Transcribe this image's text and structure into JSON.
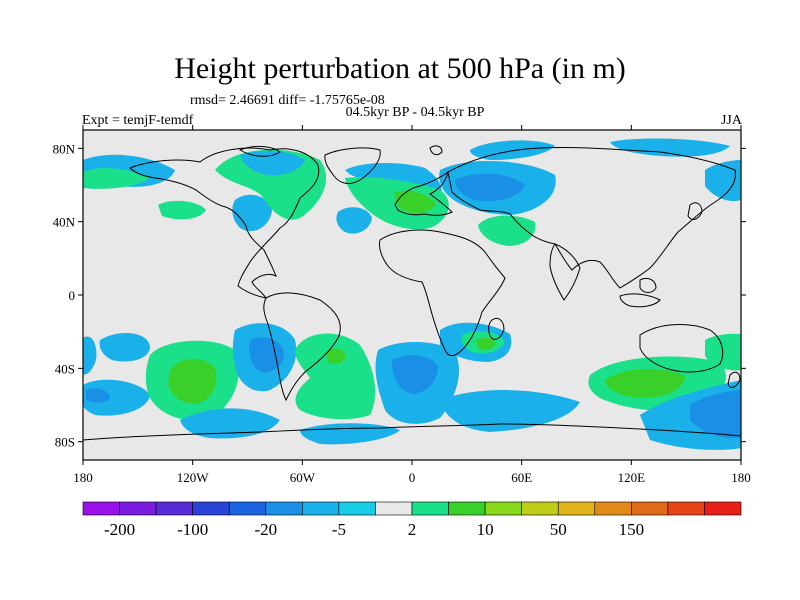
{
  "title": "Height perturbation at 500 hPa (in m)",
  "stats": "rmsd= 2.46691  diff= -1.75765e-08",
  "period": "04.5kyr BP - 04.5kyr BP",
  "experiment": "Expt = temjF-temdf",
  "season": "JJA",
  "lat_ticks": [
    "80N",
    "40N",
    "0",
    "40S",
    "80S"
  ],
  "lat_values": [
    80,
    40,
    0,
    -40,
    -80
  ],
  "lon_ticks": [
    "180",
    "120W",
    "60W",
    "0",
    "60E",
    "120E",
    "180"
  ],
  "lon_values": [
    -180,
    -120,
    -60,
    0,
    60,
    120,
    180
  ],
  "colorbar": {
    "colors": [
      "#9a10e8",
      "#7a1de0",
      "#5a2bd8",
      "#2a44d8",
      "#1a64e0",
      "#1a8fe6",
      "#1ab0ea",
      "#1acbe8",
      "#e8e8e8",
      "#1ae08a",
      "#3ad02a",
      "#8ad81a",
      "#c0cc1a",
      "#e0b41a",
      "#e08a1a",
      "#e06a1a",
      "#e8441a",
      "#e8201a"
    ],
    "labels": [
      "-200",
      "-100",
      "-20",
      "-5",
      "2",
      "10",
      "50",
      "150"
    ]
  },
  "background_color": "#e8e8e8"
}
